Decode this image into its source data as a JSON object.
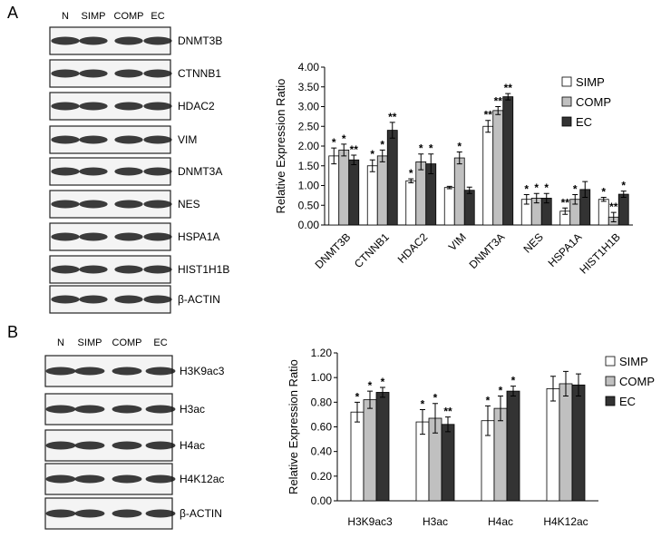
{
  "panels": [
    {
      "letter": "A",
      "lanes": [
        "N",
        "SIMP",
        "COMP",
        "EC"
      ],
      "rows": [
        "DNMT3B",
        "CTNNB1",
        "HDAC2",
        "VIM",
        "DNMT3A",
        "NES",
        "HSPA1A",
        "HIST1H1B",
        "β-ACTIN"
      ]
    },
    {
      "letter": "B",
      "lanes": [
        "N",
        "SIMP",
        "COMP",
        "EC"
      ],
      "rows": [
        "H3K9ac3",
        "H3ac",
        "H4ac",
        "H4K12ac",
        "β-ACTIN"
      ]
    }
  ],
  "chart_data": [
    {
      "type": "bar",
      "y_label": "Relative Expression Ratio",
      "categories": [
        "DNMT3B",
        "CTNNB1",
        "HDAC2",
        "VIM",
        "DNMT3A",
        "NES",
        "HSPA1A",
        "HIST1H1B"
      ],
      "series": [
        {
          "name": "SIMP",
          "color": "#ffffff",
          "values": [
            1.75,
            1.5,
            1.12,
            0.95,
            2.5,
            0.65,
            0.35,
            0.65
          ],
          "errors": [
            0.2,
            0.15,
            0.05,
            0.03,
            0.15,
            0.12,
            0.08,
            0.05
          ],
          "significance": [
            "*",
            "*",
            "*",
            null,
            "**",
            "*",
            "**",
            "*"
          ]
        },
        {
          "name": "COMP",
          "color": "#c0c0c0",
          "values": [
            1.9,
            1.75,
            1.6,
            1.7,
            2.9,
            0.68,
            0.65,
            0.2
          ],
          "errors": [
            0.15,
            0.15,
            0.2,
            0.15,
            0.1,
            0.12,
            0.12,
            0.12
          ],
          "significance": [
            "*",
            "*",
            "*",
            "*",
            "**",
            "*",
            "*",
            "**"
          ]
        },
        {
          "name": "EC",
          "color": "#333333",
          "values": [
            1.65,
            2.4,
            1.55,
            0.88,
            3.25,
            0.68,
            0.9,
            0.78
          ],
          "errors": [
            0.12,
            0.2,
            0.25,
            0.08,
            0.08,
            0.12,
            0.2,
            0.08
          ],
          "significance": [
            "**",
            "**",
            "*",
            null,
            "**",
            "*",
            null,
            "*"
          ]
        }
      ],
      "ylim": [
        0,
        4
      ],
      "yticks": [
        {
          "value": 0,
          "label": "0.00"
        },
        {
          "value": 0.5,
          "label": "0.50"
        },
        {
          "value": 1,
          "label": "1.00"
        },
        {
          "value": 1.5,
          "label": "1.50"
        },
        {
          "value": 2,
          "label": "2.00"
        },
        {
          "value": 2.5,
          "label": "2.50"
        },
        {
          "value": 3,
          "label": "3.00"
        },
        {
          "value": 3.5,
          "label": "3.50"
        },
        {
          "value": 4,
          "label": "4.00"
        }
      ],
      "legend": "upper right"
    },
    {
      "type": "bar",
      "y_label": "Relative Expression Ratio",
      "categories": [
        "H3K9ac3",
        "H3ac",
        "H4ac",
        "H4K12ac"
      ],
      "series": [
        {
          "name": "SIMP",
          "color": "#ffffff",
          "values": [
            0.72,
            0.64,
            0.65,
            0.91
          ],
          "errors": [
            0.08,
            0.1,
            0.12,
            0.1
          ],
          "significance": [
            "*",
            "*",
            "*",
            null
          ]
        },
        {
          "name": "COMP",
          "color": "#c0c0c0",
          "values": [
            0.82,
            0.67,
            0.75,
            0.95
          ],
          "errors": [
            0.07,
            0.12,
            0.1,
            0.1
          ],
          "significance": [
            "*",
            "*",
            "*",
            null
          ]
        },
        {
          "name": "EC",
          "color": "#333333",
          "values": [
            0.88,
            0.62,
            0.89,
            0.94
          ],
          "errors": [
            0.04,
            0.06,
            0.04,
            0.09
          ],
          "significance": [
            "*",
            "**",
            "*",
            null
          ]
        }
      ],
      "ylim": [
        0,
        1.2
      ],
      "yticks": [
        {
          "value": 0,
          "label": "0.00"
        },
        {
          "value": 0.2,
          "label": "0.20"
        },
        {
          "value": 0.4,
          "label": "0.40"
        },
        {
          "value": 0.6,
          "label": "0.60"
        },
        {
          "value": 0.8,
          "label": "0.80"
        },
        {
          "value": 1,
          "label": "1.00"
        },
        {
          "value": 1.2,
          "label": "1.20"
        }
      ],
      "legend": "outside right"
    }
  ]
}
